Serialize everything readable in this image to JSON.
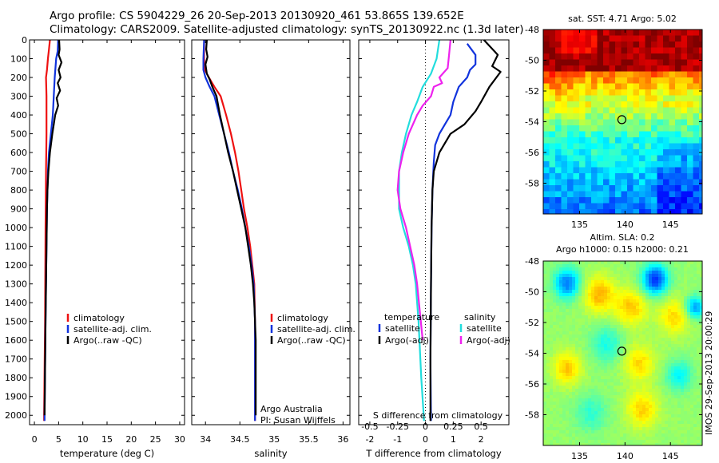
{
  "header": {
    "line1": "Argo profile: CS 5904229_26 20-Sep-2013 20130920_461 53.865S 139.652E",
    "line2": "Climatology: CARS2009. Satellite-adjusted climatology: synTS_20130922.nc (1.3d later)"
  },
  "colors": {
    "climatology": "#ee1111",
    "satellite": "#1133dd",
    "argo": "#000000",
    "cyan": "#22dddd",
    "magenta": "#ee22ee"
  },
  "chart_data": [
    {
      "type": "line",
      "xlabel": "temperature (deg C)",
      "xlim": [
        -1,
        31
      ],
      "ylim": [
        0,
        2050
      ],
      "xticks": [
        0,
        5,
        10,
        15,
        20,
        25,
        30
      ],
      "yticks": [
        0,
        100,
        200,
        300,
        400,
        500,
        600,
        700,
        800,
        900,
        1000,
        1100,
        1200,
        1300,
        1400,
        1500,
        1600,
        1700,
        1800,
        1900,
        2000
      ],
      "legend": [
        "climatology",
        "satellite-adj. clim.",
        "Argo(..raw -QC)"
      ],
      "series": [
        {
          "name": "climatology",
          "color": "#ee1111",
          "points": [
            [
              3.2,
              0
            ],
            [
              3.0,
              50
            ],
            [
              2.8,
              100
            ],
            [
              2.6,
              160
            ],
            [
              2.4,
              200
            ],
            [
              2.5,
              300
            ],
            [
              2.5,
              500
            ],
            [
              2.4,
              700
            ],
            [
              2.3,
              1000
            ],
            [
              2.2,
              1500
            ],
            [
              2.0,
              2000
            ],
            [
              2.0,
              2030
            ]
          ]
        },
        {
          "name": "satellite-adj. clim.",
          "color": "#1133dd",
          "points": [
            [
              4.9,
              0
            ],
            [
              4.8,
              60
            ],
            [
              4.5,
              100
            ],
            [
              4.2,
              200
            ],
            [
              4.0,
              300
            ],
            [
              3.8,
              400
            ],
            [
              3.4,
              500
            ],
            [
              3.0,
              600
            ],
            [
              2.8,
              700
            ],
            [
              2.6,
              900
            ],
            [
              2.5,
              1100
            ],
            [
              2.3,
              1500
            ],
            [
              2.1,
              2000
            ],
            [
              2.1,
              2030
            ]
          ]
        },
        {
          "name": "Argo(..raw -QC)",
          "color": "#000000",
          "points": [
            [
              5.1,
              0
            ],
            [
              5.2,
              50
            ],
            [
              5.0,
              80
            ],
            [
              5.6,
              120
            ],
            [
              5.0,
              160
            ],
            [
              5.4,
              200
            ],
            [
              4.8,
              230
            ],
            [
              5.3,
              270
            ],
            [
              4.6,
              310
            ],
            [
              4.9,
              350
            ],
            [
              4.3,
              400
            ],
            [
              4.0,
              450
            ],
            [
              3.7,
              500
            ],
            [
              3.2,
              600
            ],
            [
              2.9,
              700
            ],
            [
              2.7,
              800
            ],
            [
              2.6,
              900
            ],
            [
              2.5,
              1100
            ],
            [
              2.3,
              1500
            ],
            [
              2.1,
              2000
            ]
          ]
        }
      ]
    },
    {
      "type": "line",
      "xlabel": "salinity",
      "xlim": [
        33.8,
        36.1
      ],
      "ylim": [
        0,
        2050
      ],
      "xticks": [
        34,
        34.5,
        35,
        35.5,
        36
      ],
      "xticklabels": [
        "34",
        "34.5",
        "35",
        "35.5",
        "36"
      ],
      "legend": [
        "climatology",
        "satellite-adj. clim.",
        "Argo(..raw -QC)"
      ],
      "annotation": [
        "Argo Australia",
        "PI: Susan Wijffels"
      ],
      "series": [
        {
          "name": "climatology",
          "color": "#ee1111",
          "points": [
            [
              33.98,
              0
            ],
            [
              33.98,
              100
            ],
            [
              33.99,
              160
            ],
            [
              34.05,
              200
            ],
            [
              34.13,
              250
            ],
            [
              34.22,
              300
            ],
            [
              34.3,
              400
            ],
            [
              34.37,
              500
            ],
            [
              34.43,
              600
            ],
            [
              34.48,
              700
            ],
            [
              34.52,
              800
            ],
            [
              34.56,
              900
            ],
            [
              34.61,
              1000
            ],
            [
              34.65,
              1100
            ],
            [
              34.68,
              1200
            ],
            [
              34.71,
              1300
            ],
            [
              34.72,
              1500
            ],
            [
              34.72,
              2000
            ],
            [
              34.72,
              2030
            ]
          ]
        },
        {
          "name": "satellite-adj. clim.",
          "color": "#1133dd",
          "points": [
            [
              33.98,
              0
            ],
            [
              33.97,
              100
            ],
            [
              33.97,
              160
            ],
            [
              34.0,
              200
            ],
            [
              34.06,
              250
            ],
            [
              34.13,
              300
            ],
            [
              34.2,
              400
            ],
            [
              34.27,
              500
            ],
            [
              34.34,
              600
            ],
            [
              34.4,
              700
            ],
            [
              34.47,
              800
            ],
            [
              34.53,
              900
            ],
            [
              34.58,
              1000
            ],
            [
              34.63,
              1100
            ],
            [
              34.67,
              1200
            ],
            [
              34.7,
              1300
            ],
            [
              34.72,
              1500
            ],
            [
              34.72,
              2000
            ],
            [
              34.72,
              2030
            ]
          ]
        },
        {
          "name": "Argo(..raw -QC)",
          "color": "#000000",
          "points": [
            [
              34.02,
              0
            ],
            [
              34.01,
              50
            ],
            [
              34.03,
              90
            ],
            [
              34.0,
              130
            ],
            [
              34.02,
              180
            ],
            [
              34.06,
              210
            ],
            [
              34.1,
              250
            ],
            [
              34.16,
              300
            ],
            [
              34.21,
              400
            ],
            [
              34.27,
              500
            ],
            [
              34.33,
              600
            ],
            [
              34.4,
              700
            ],
            [
              34.46,
              800
            ],
            [
              34.52,
              900
            ],
            [
              34.58,
              1000
            ],
            [
              34.62,
              1100
            ],
            [
              34.66,
              1200
            ],
            [
              34.69,
              1300
            ],
            [
              34.71,
              1400
            ],
            [
              34.73,
              1600
            ],
            [
              34.73,
              2000
            ]
          ]
        }
      ]
    },
    {
      "type": "line",
      "xlabel": "T difference from climatology",
      "title": "S difference from climatology",
      "xlim": [
        -2.4,
        3.0
      ],
      "ylim": [
        0,
        2050
      ],
      "xticks": [
        -2,
        -1,
        0,
        1,
        2
      ],
      "top_ticks": [
        "-0.5",
        "-0.25",
        "0",
        "0.25",
        "0.5"
      ],
      "top_tick_values": [
        -2,
        -1,
        0,
        1,
        2
      ],
      "legend_left_title": "temperature",
      "legend_right_title": "salinity",
      "legend": [
        "satellite",
        "Argo(-adj)",
        "satellite",
        "Argo(-adj)"
      ],
      "series": [
        {
          "name": "satellite",
          "color": "#1133dd",
          "points": [
            [
              1.5,
              20
            ],
            [
              1.8,
              80
            ],
            [
              1.8,
              130
            ],
            [
              1.6,
              160
            ],
            [
              1.5,
              200
            ],
            [
              1.2,
              250
            ],
            [
              1.0,
              330
            ],
            [
              0.9,
              400
            ],
            [
              0.7,
              450
            ],
            [
              0.5,
              500
            ],
            [
              0.35,
              560
            ],
            [
              0.3,
              650
            ],
            [
              0.25,
              800
            ],
            [
              0.22,
              1000
            ],
            [
              0.2,
              1300
            ],
            [
              0.18,
              1700
            ],
            [
              0.2,
              2030
            ]
          ]
        },
        {
          "name": "Argo(-adj)",
          "color": "#000000",
          "points": [
            [
              2.1,
              0
            ],
            [
              2.6,
              80
            ],
            [
              2.4,
              140
            ],
            [
              2.7,
              170
            ],
            [
              2.3,
              250
            ],
            [
              2.0,
              330
            ],
            [
              1.8,
              380
            ],
            [
              1.4,
              450
            ],
            [
              0.9,
              500
            ],
            [
              0.5,
              600
            ],
            [
              0.3,
              700
            ],
            [
              0.25,
              800
            ],
            [
              0.22,
              1000
            ],
            [
              0.2,
              1300
            ],
            [
              0.18,
              1700
            ],
            [
              0.18,
              2030
            ]
          ]
        },
        {
          "name": "satellite",
          "color": "#22dddd",
          "points": [
            [
              0.5,
              0
            ],
            [
              0.4,
              100
            ],
            [
              0.2,
              180
            ],
            [
              -0.1,
              250
            ],
            [
              -0.3,
              330
            ],
            [
              -0.5,
              400
            ],
            [
              -0.7,
              500
            ],
            [
              -0.85,
              600
            ],
            [
              -0.95,
              700
            ],
            [
              -0.95,
              900
            ],
            [
              -0.8,
              1000
            ],
            [
              -0.6,
              1100
            ],
            [
              -0.45,
              1200
            ],
            [
              -0.35,
              1300
            ],
            [
              -0.25,
              1500
            ],
            [
              -0.15,
              1800
            ],
            [
              -0.05,
              2030
            ]
          ]
        },
        {
          "name": "Argo(-adj)",
          "color": "#ee22ee",
          "points": [
            [
              0.9,
              0
            ],
            [
              0.85,
              80
            ],
            [
              0.8,
              150
            ],
            [
              0.5,
              200
            ],
            [
              0.6,
              230
            ],
            [
              0.3,
              250
            ],
            [
              0.2,
              300
            ],
            [
              -0.1,
              350
            ],
            [
              -0.3,
              400
            ],
            [
              -0.6,
              500
            ],
            [
              -0.8,
              600
            ],
            [
              -0.95,
              700
            ],
            [
              -1.0,
              800
            ],
            [
              -0.9,
              900
            ],
            [
              -0.7,
              1000
            ],
            [
              -0.55,
              1100
            ],
            [
              -0.4,
              1200
            ],
            [
              -0.3,
              1300
            ],
            [
              -0.2,
              1450
            ],
            [
              -0.1,
              1600
            ]
          ]
        }
      ]
    },
    {
      "type": "heatmap",
      "title": "sat. SST: 4.71  Argo: 5.02",
      "xlim": [
        131,
        148.5
      ],
      "ylim": [
        -60,
        -48
      ],
      "xticks": [
        135,
        140,
        145
      ],
      "yticks": [
        -48,
        -50,
        -52,
        -54,
        -56,
        -58
      ],
      "marker": [
        139.65,
        -53.865
      ]
    },
    {
      "type": "heatmap",
      "title1": "Altim. SLA: 0.2",
      "title2": "Argo h1000: 0.15  h2000: 0.21",
      "side_label": "IMOS 29-Sep-2013 20:00:29",
      "xlim": [
        131,
        148.5
      ],
      "ylim": [
        -60,
        -48
      ],
      "xticks": [
        135,
        140,
        145
      ],
      "yticks": [
        -48,
        -50,
        -52,
        -54,
        -56,
        -58
      ],
      "marker": [
        139.65,
        -53.865
      ]
    }
  ]
}
